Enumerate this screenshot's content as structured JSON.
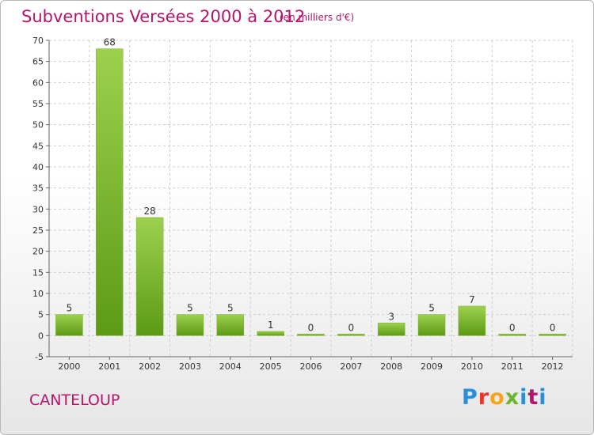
{
  "header": {
    "title": "Subventions Versées 2000 à 2012",
    "subtitle": "(en milliers d'€)"
  },
  "footer": {
    "city": "CANTELOUP",
    "logo_text": "Proxiti",
    "logo_colors": [
      "#2a8fd6",
      "#e8352f",
      "#f7a51d",
      "#6bb52c",
      "#2a8fd6",
      "#b5156b"
    ]
  },
  "colors": {
    "accent": "#b5156b",
    "bar_top": "#9dd14d",
    "bar_bottom": "#5c9a16",
    "grid": "#cccccc"
  },
  "chart_data": {
    "type": "bar",
    "title": "Subventions Versées 2000 à 2012",
    "subtitle": "(en milliers d'€)",
    "categories": [
      "2000",
      "2001",
      "2002",
      "2003",
      "2004",
      "2005",
      "2006",
      "2007",
      "2008",
      "2009",
      "2010",
      "2011",
      "2012"
    ],
    "values": [
      5,
      68,
      28,
      5,
      5,
      1,
      0,
      0,
      3,
      5,
      7,
      0,
      0
    ],
    "value_labels": [
      "5",
      "68",
      "28",
      "5",
      "5",
      "1",
      "0",
      "0",
      "3",
      "5",
      "7",
      "0",
      "0"
    ],
    "ylim": [
      -5,
      70
    ],
    "yticks": [
      -5,
      0,
      5,
      10,
      15,
      20,
      25,
      30,
      35,
      40,
      45,
      50,
      55,
      60,
      65,
      70
    ],
    "xlabel": "",
    "ylabel": "",
    "grid": true,
    "legend": "none"
  }
}
